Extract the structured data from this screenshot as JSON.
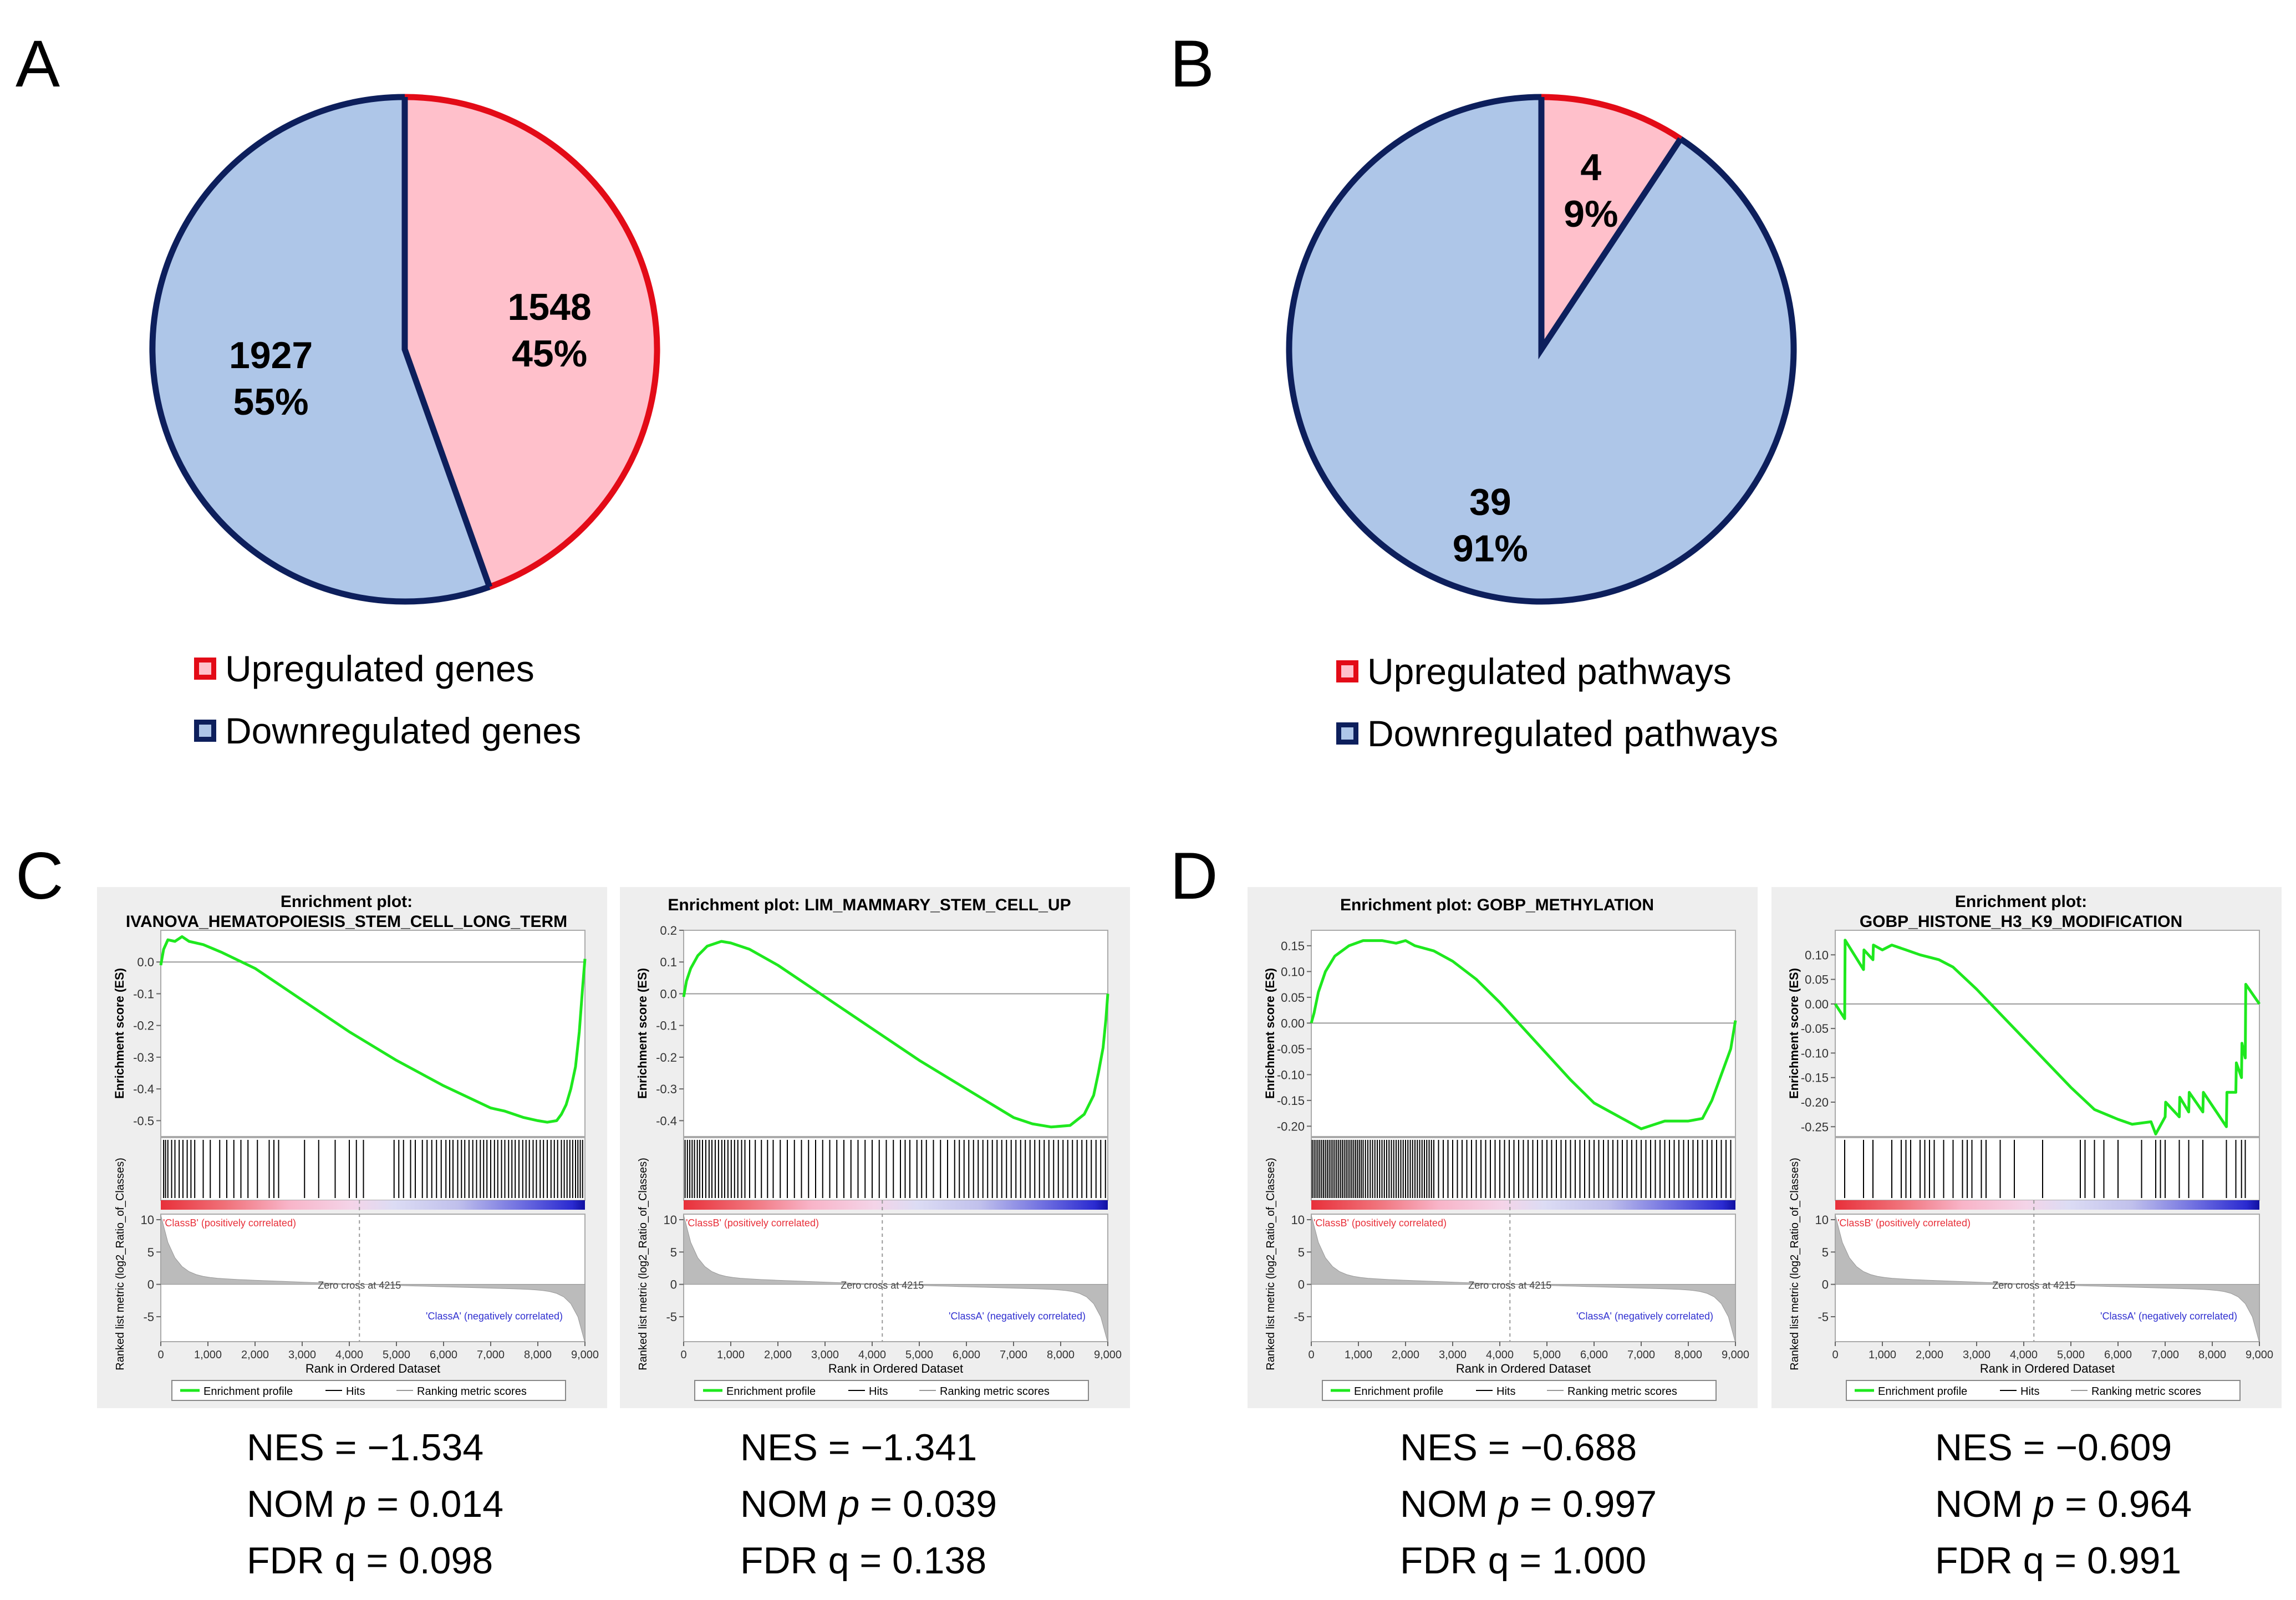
{
  "panels": {
    "A": {
      "letter": "A",
      "legend": [
        {
          "label": "Upregulated genes",
          "fill": "#FFC0CB",
          "border": "#E30B17"
        },
        {
          "label": "Downregulated genes",
          "fill": "#AEC6E8",
          "border": "#0D1F5C"
        }
      ]
    },
    "B": {
      "letter": "B",
      "legend": [
        {
          "label": "Upregulated pathways",
          "fill": "#FFC0CB",
          "border": "#E30B17"
        },
        {
          "label": "Downregulated pathways",
          "fill": "#AEC6E8",
          "border": "#0D1F5C"
        }
      ]
    },
    "C": {
      "letter": "C"
    },
    "D": {
      "letter": "D"
    }
  },
  "gsea_common": {
    "ylabel_es": "Enrichment score (ES)",
    "ylabel_metric": "Ranked list metric (log2_Ratio_of_Classes)",
    "xlabel": "Rank in Ordered Dataset",
    "xticks": [
      "0",
      "1,000",
      "2,000",
      "3,000",
      "4,000",
      "5,000",
      "6,000",
      "7,000",
      "8,000",
      "9,000"
    ],
    "class_b_label": "'ClassB' (positively correlated)",
    "class_a_label": "'ClassA' (negatively correlated)",
    "zero_cross_label": "Zero cross at 4215",
    "metric_yticks": [
      "10",
      "5",
      "0",
      "-5"
    ],
    "legend": [
      "Enrichment profile",
      "Hits",
      "Ranking metric scores"
    ]
  },
  "colors": {
    "up_fill": "#FFC0CB",
    "up_border": "#E30B17",
    "down_fill": "#AEC6E8",
    "down_border": "#0D1F5C",
    "es_line": "#1EE81E",
    "plot_bg": "#EEEEEE"
  },
  "stats": [
    {
      "nes_label": "NES = ",
      "nes": "−1.534",
      "p_label": "NOM ",
      "p_sym": "p",
      "p_val": " = 0.014",
      "fdr_label": "FDR q = ",
      "fdr": "0.098"
    },
    {
      "nes_label": "NES = ",
      "nes": "−1.341",
      "p_label": "NOM ",
      "p_sym": "p",
      "p_val": " = 0.039",
      "fdr_label": "FDR q = ",
      "fdr": "0.138"
    },
    {
      "nes_label": "NES = ",
      "nes": "−0.688",
      "p_label": "NOM ",
      "p_sym": "p",
      "p_val": " = 0.997",
      "fdr_label": "FDR q = ",
      "fdr": "1.000"
    },
    {
      "nes_label": "NES = ",
      "nes": "−0.609",
      "p_label": "NOM ",
      "p_sym": "p",
      "p_val": " = 0.964",
      "fdr_label": "FDR q = ",
      "fdr": "0.991"
    }
  ],
  "chart_data": [
    {
      "type": "pie",
      "title": "",
      "slices": [
        {
          "label": "Upregulated genes",
          "value": 1548,
          "percent_label": "45%",
          "count_label": "1548"
        },
        {
          "label": "Downregulated genes",
          "value": 1927,
          "percent_label": "55%",
          "count_label": "1927"
        }
      ]
    },
    {
      "type": "pie",
      "title": "",
      "slices": [
        {
          "label": "Upregulated pathways",
          "value": 4,
          "percent_label": "9%",
          "count_label": "4"
        },
        {
          "label": "Downregulated pathways",
          "value": 39,
          "percent_label": "91%",
          "count_label": "39"
        }
      ]
    },
    {
      "type": "line",
      "title_lines": [
        "Enrichment plot:",
        "IVANOVA_HEMATOPOIESIS_STEM_CELL_LONG_TERM"
      ],
      "xlim": [
        0,
        9000
      ],
      "ylim": [
        -0.55,
        0.1
      ],
      "yticks": [
        0.0,
        -0.1,
        -0.2,
        -0.3,
        -0.4,
        -0.5
      ],
      "ytick_labels": [
        "0.0",
        "-0.1",
        "-0.2",
        "-0.3",
        "-0.4",
        "-0.5"
      ],
      "es_x": [
        0,
        60,
        150,
        300,
        450,
        600,
        900,
        1300,
        2000,
        3000,
        4000,
        5000,
        6000,
        7000,
        7300,
        7700,
        8000,
        8200,
        8400,
        8500,
        8600,
        8700,
        8800,
        8880,
        8950,
        9000
      ],
      "es_y": [
        -0.01,
        0.04,
        0.07,
        0.065,
        0.08,
        0.065,
        0.055,
        0.03,
        -0.02,
        -0.12,
        -0.22,
        -0.31,
        -0.39,
        -0.46,
        -0.47,
        -0.49,
        -0.5,
        -0.505,
        -0.5,
        -0.48,
        -0.45,
        -0.4,
        -0.33,
        -0.22,
        -0.08,
        0.01
      ],
      "hits": [
        60,
        100,
        150,
        230,
        300,
        390,
        470,
        560,
        640,
        720,
        900,
        1050,
        1250,
        1400,
        1550,
        1700,
        1850,
        2050,
        2300,
        2400,
        2500,
        3050,
        3350,
        3700,
        4000,
        4150,
        4300,
        4950,
        5050,
        5150,
        5300,
        5400,
        5550,
        5650,
        5750,
        5850,
        5950,
        6050,
        6130,
        6200,
        6300,
        6380,
        6450,
        6540,
        6620,
        6700,
        6780,
        6850,
        6920,
        7000,
        7080,
        7150,
        7230,
        7300,
        7380,
        7450,
        7520,
        7600,
        7680,
        7750,
        7820,
        7900,
        7970,
        8050,
        8120,
        8200,
        8280,
        8350,
        8420,
        8500,
        8560,
        8620,
        8680,
        8740,
        8800,
        8850,
        8900,
        8950
      ],
      "zero_cross": 4215
    },
    {
      "type": "line",
      "title_lines": [
        "Enrichment plot: LIM_MAMMARY_STEM_CELL_UP"
      ],
      "xlim": [
        0,
        9000
      ],
      "ylim": [
        -0.45,
        0.2
      ],
      "yticks": [
        0.2,
        0.1,
        0.0,
        -0.1,
        -0.2,
        -0.3,
        -0.4
      ],
      "ytick_labels": [
        "0.2",
        "0.1",
        "0.0",
        "-0.1",
        "-0.2",
        "-0.3",
        "-0.4"
      ],
      "es_x": [
        0,
        60,
        150,
        300,
        500,
        800,
        1000,
        1400,
        2000,
        3000,
        4000,
        5000,
        6000,
        7000,
        7400,
        7800,
        8200,
        8500,
        8700,
        8800,
        8900,
        8960,
        9000
      ],
      "es_y": [
        -0.01,
        0.04,
        0.08,
        0.12,
        0.15,
        0.165,
        0.16,
        0.14,
        0.09,
        -0.01,
        -0.11,
        -0.21,
        -0.3,
        -0.39,
        -0.41,
        -0.42,
        -0.415,
        -0.38,
        -0.32,
        -0.25,
        -0.17,
        -0.08,
        0.0
      ],
      "hits": [
        30,
        80,
        130,
        180,
        230,
        290,
        340,
        400,
        470,
        540,
        600,
        670,
        740,
        810,
        870,
        940,
        1010,
        1080,
        1150,
        1230,
        1300,
        1400,
        1520,
        1650,
        1780,
        1900,
        2050,
        2200,
        2350,
        2500,
        2650,
        2800,
        2950,
        3100,
        3250,
        3400,
        3550,
        3700,
        3850,
        4000,
        4150,
        4300,
        4450,
        4600,
        4700,
        4800,
        4950,
        5050,
        5150,
        5300,
        5450,
        5600,
        5750,
        5850,
        5950,
        6050,
        6150,
        6250,
        6350,
        6450,
        6550,
        6650,
        6750,
        6850,
        6950,
        7050,
        7150,
        7250,
        7350,
        7450,
        7550,
        7650,
        7750,
        7850,
        7950,
        8050,
        8150,
        8250,
        8350,
        8450,
        8550,
        8650,
        8750,
        8850,
        8950
      ],
      "zero_cross": 4215
    },
    {
      "type": "line",
      "title_lines": [
        "Enrichment plot: GOBP_METHYLATION"
      ],
      "xlim": [
        0,
        9000
      ],
      "ylim": [
        -0.22,
        0.18
      ],
      "yticks": [
        0.15,
        0.1,
        0.05,
        0.0,
        -0.05,
        -0.1,
        -0.15,
        -0.2
      ],
      "ytick_labels": [
        "0.15",
        "0.10",
        "0.05",
        "0.00",
        "-0.05",
        "-0.10",
        "-0.15",
        "-0.20"
      ],
      "es_x": [
        0,
        60,
        150,
        300,
        500,
        800,
        1100,
        1500,
        1800,
        2000,
        2200,
        2600,
        3000,
        3500,
        4000,
        4500,
        5000,
        5500,
        6000,
        6300,
        6700,
        7000,
        7500,
        8000,
        8300,
        8500,
        8700,
        8900,
        9000
      ],
      "es_y": [
        0.0,
        0.02,
        0.06,
        0.1,
        0.13,
        0.15,
        0.16,
        0.16,
        0.155,
        0.16,
        0.15,
        0.14,
        0.12,
        0.085,
        0.04,
        -0.01,
        -0.06,
        -0.11,
        -0.155,
        -0.17,
        -0.19,
        -0.205,
        -0.19,
        -0.19,
        -0.185,
        -0.15,
        -0.1,
        -0.05,
        0.005
      ],
      "hits": [
        20,
        60,
        100,
        140,
        180,
        220,
        260,
        300,
        340,
        380,
        420,
        460,
        500,
        540,
        580,
        620,
        660,
        700,
        740,
        780,
        820,
        860,
        900,
        940,
        980,
        1020,
        1060,
        1100,
        1150,
        1200,
        1250,
        1300,
        1350,
        1400,
        1450,
        1500,
        1550,
        1600,
        1650,
        1700,
        1750,
        1800,
        1850,
        1900,
        1950,
        2000,
        2050,
        2100,
        2150,
        2200,
        2250,
        2300,
        2350,
        2400,
        2450,
        2500,
        2550,
        2600,
        2700,
        2800,
        2900,
        3000,
        3100,
        3200,
        3300,
        3400,
        3500,
        3600,
        3700,
        3800,
        3900,
        4000,
        4100,
        4200,
        4300,
        4400,
        4500,
        4600,
        4700,
        4800,
        4900,
        5000,
        5100,
        5200,
        5300,
        5400,
        5500,
        5600,
        5700,
        5800,
        5900,
        6000,
        6100,
        6200,
        6300,
        6400,
        6500,
        6600,
        6700,
        6800,
        6900,
        7000,
        7100,
        7200,
        7300,
        7400,
        7500,
        7600,
        7700,
        7800,
        7900,
        8000,
        8100,
        8200,
        8300,
        8400,
        8500,
        8600,
        8700,
        8800,
        8900
      ],
      "zero_cross": 4215
    },
    {
      "type": "line",
      "title_lines": [
        "Enrichment plot:",
        "GOBP_HISTONE_H3_K9_MODIFICATION"
      ],
      "xlim": [
        0,
        9000
      ],
      "ylim": [
        -0.27,
        0.15
      ],
      "yticks": [
        0.1,
        0.05,
        0.0,
        -0.05,
        -0.1,
        -0.15,
        -0.2,
        -0.25
      ],
      "ytick_labels": [
        "0.10",
        "0.05",
        "0.00",
        "-0.05",
        "-0.10",
        "-0.15",
        "-0.20",
        "-0.25"
      ],
      "es_x": [
        0,
        200,
        210,
        600,
        610,
        800,
        810,
        1000,
        1200,
        1500,
        1800,
        2200,
        2500,
        3000,
        3500,
        4000,
        4500,
        5000,
        5500,
        6000,
        6300,
        6700,
        6800,
        7000,
        7010,
        7300,
        7310,
        7500,
        7510,
        7800,
        7810,
        8300,
        8310,
        8500,
        8510,
        8620,
        8630,
        8700,
        8710,
        9000
      ],
      "es_y": [
        0.0,
        -0.03,
        0.13,
        0.07,
        0.11,
        0.09,
        0.12,
        0.11,
        0.12,
        0.11,
        0.1,
        0.09,
        0.075,
        0.03,
        -0.02,
        -0.07,
        -0.12,
        -0.17,
        -0.215,
        -0.235,
        -0.245,
        -0.24,
        -0.265,
        -0.23,
        -0.2,
        -0.23,
        -0.19,
        -0.22,
        -0.18,
        -0.22,
        -0.18,
        -0.25,
        -0.18,
        -0.18,
        -0.12,
        -0.15,
        -0.08,
        -0.11,
        0.04,
        0.0
      ],
      "hits": [
        200,
        600,
        800,
        1200,
        1400,
        1500,
        1600,
        1800,
        1900,
        2000,
        2100,
        2300,
        2500,
        2700,
        2800,
        2900,
        3100,
        3200,
        3500,
        3800,
        4400,
        5200,
        5300,
        5500,
        5700,
        6000,
        6500,
        6800,
        6900,
        7000,
        7300,
        7500,
        7800,
        8300,
        8500,
        8620,
        8700
      ],
      "zero_cross": 4215
    }
  ]
}
